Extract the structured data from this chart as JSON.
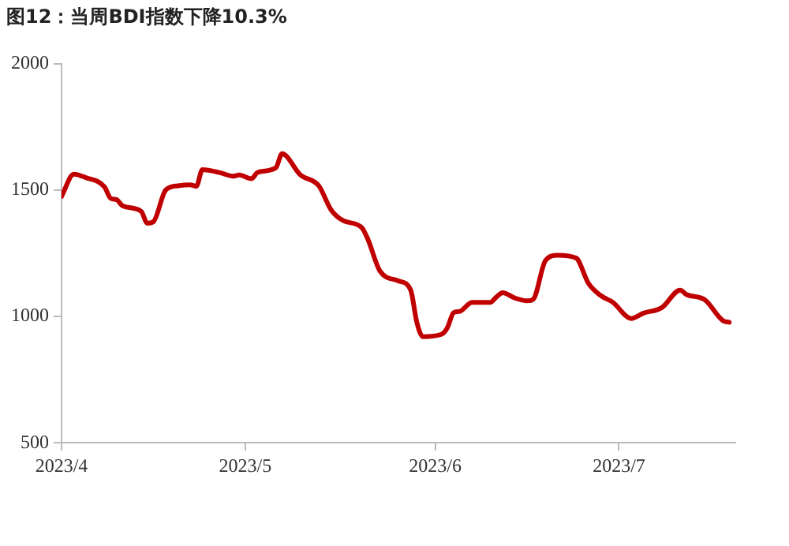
{
  "chart_data": {
    "type": "line",
    "title": "图12：当周BDI指数下降10.3%",
    "x": [
      "2023-04-01",
      "2023-04-03",
      "2023-04-05",
      "2023-04-08",
      "2023-04-09",
      "2023-04-10",
      "2023-04-11",
      "2023-04-14",
      "2023-04-15",
      "2023-04-16",
      "2023-04-18",
      "2023-04-20",
      "2023-04-22",
      "2023-04-23",
      "2023-04-24",
      "2023-04-27",
      "2023-04-29",
      "2023-04-30",
      "2023-05-02",
      "2023-05-03",
      "2023-05-06",
      "2023-05-07",
      "2023-05-10",
      "2023-05-13",
      "2023-05-15",
      "2023-05-17",
      "2023-05-20",
      "2023-05-21",
      "2023-05-23",
      "2023-05-26",
      "2023-05-28",
      "2023-05-29",
      "2023-05-30",
      "2023-06-02",
      "2023-06-03",
      "2023-06-04",
      "2023-06-05",
      "2023-06-07",
      "2023-06-10",
      "2023-06-11",
      "2023-06-12",
      "2023-06-14",
      "2023-06-16",
      "2023-06-17",
      "2023-06-19",
      "2023-06-21",
      "2023-06-24",
      "2023-06-26",
      "2023-06-28",
      "2023-06-30",
      "2023-07-03",
      "2023-07-05",
      "2023-07-08",
      "2023-07-11",
      "2023-07-12",
      "2023-07-15",
      "2023-07-18",
      "2023-07-19"
    ],
    "series": [
      {
        "color": "#c00000",
        "values": [
          1475,
          1563,
          1549,
          1513,
          1468,
          1462,
          1437,
          1416,
          1369,
          1375,
          1500,
          1517,
          1521,
          1515,
          1581,
          1568,
          1555,
          1560,
          1545,
          1570,
          1589,
          1644,
          1560,
          1517,
          1422,
          1379,
          1352,
          1306,
          1179,
          1141,
          1104,
          977,
          920,
          929,
          956,
          1015,
          1020,
          1056,
          1056,
          1077,
          1094,
          1073,
          1062,
          1068,
          1221,
          1242,
          1231,
          1132,
          1083,
          1056,
          992,
          1013,
          1035,
          1104,
          1087,
          1066,
          983,
          977
        ]
      }
    ],
    "xlim": [
      "2023-04-01",
      "2023-07-20"
    ],
    "xticks": [
      {
        "value": "2023-04-01",
        "label": "2023/4"
      },
      {
        "value": "2023-05-01",
        "label": "2023/5"
      },
      {
        "value": "2023-06-01",
        "label": "2023/6"
      },
      {
        "value": "2023-07-01",
        "label": "2023/7"
      }
    ],
    "ylim": [
      500,
      2000
    ],
    "yticks": [
      500,
      1000,
      1500,
      2000
    ],
    "grid": false,
    "legend": false,
    "marker": "none",
    "line_style": "solid"
  }
}
